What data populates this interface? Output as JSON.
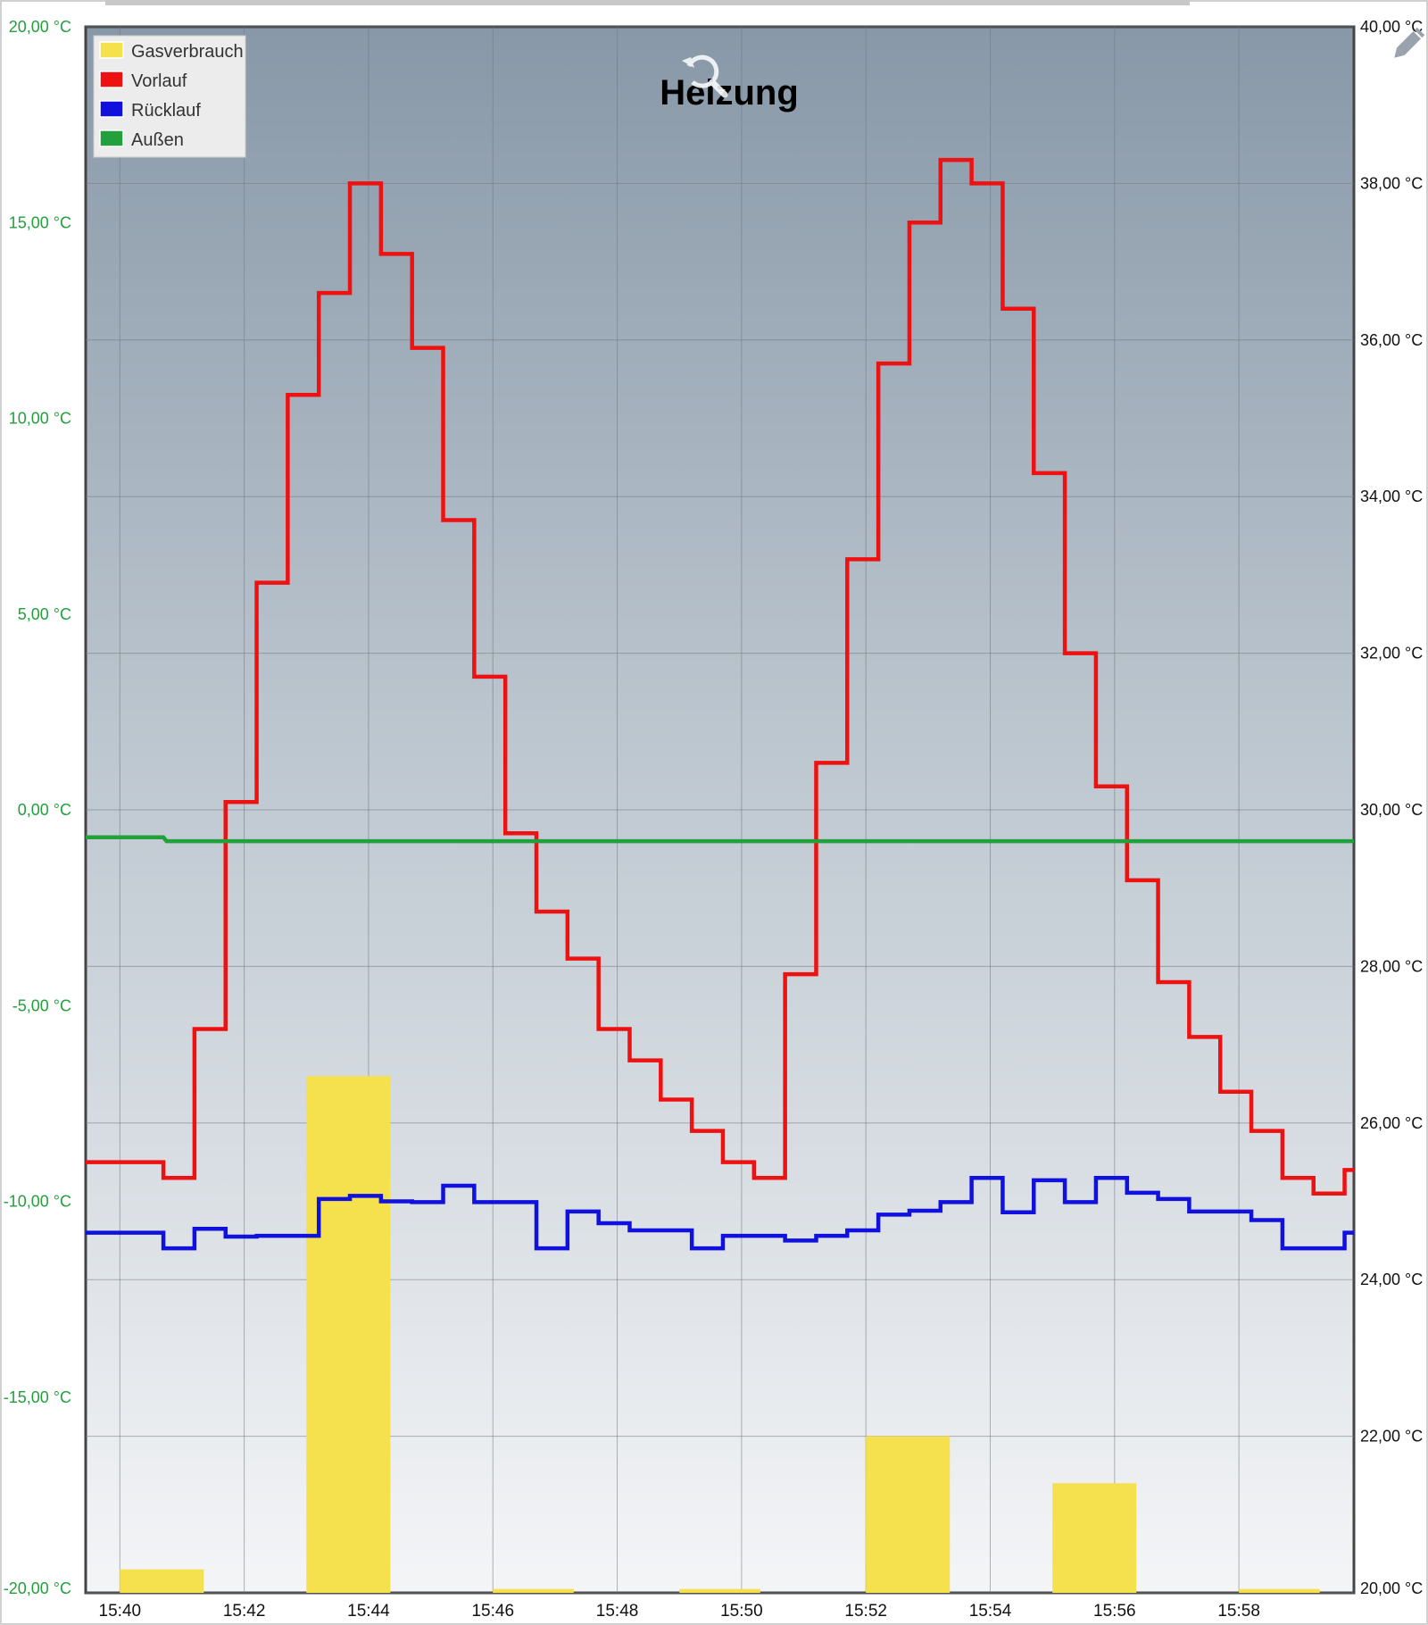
{
  "chart_data": {
    "type": "line",
    "title": "Heizung",
    "x_ticks": [
      "15:40",
      "15:42",
      "15:44",
      "15:46",
      "15:48",
      "15:50",
      "15:52",
      "15:54",
      "15:56",
      "15:58"
    ],
    "x_range_minutes": [
      -0.55,
      19.85
    ],
    "y_left": {
      "range": [
        -20,
        20
      ],
      "ticks": [
        "20,00 °C",
        "15,00 °C",
        "10,00 °C",
        "5,00 °C",
        "0,00 °C",
        "-5,00 °C",
        "-10,00 °C",
        "-15,00 °C",
        "-20,00 °C"
      ],
      "color": "#22a03c"
    },
    "y_right": {
      "range": [
        20,
        40
      ],
      "ticks": [
        "40,00 °C",
        "38,00 °C",
        "36,00 °C",
        "34,00 °C",
        "32,00 °C",
        "30,00 °C",
        "28,00 °C",
        "26,00 °C",
        "24,00 °C",
        "22,00 °C",
        "20,00 °C"
      ]
    },
    "grid": true,
    "legend_position": "top-left",
    "series": [
      {
        "name": "Gasverbrauch",
        "type": "bar",
        "axis": "right",
        "color": "#f5e04e",
        "bars": [
          {
            "x0": 0.0,
            "x1": 1.35,
            "value": 20.3
          },
          {
            "x0": 3.0,
            "x1": 4.35,
            "value": 26.6
          },
          {
            "x0": 6.0,
            "x1": 7.3,
            "value": 20.05
          },
          {
            "x0": 9.0,
            "x1": 10.3,
            "value": 20.05
          },
          {
            "x0": 12.0,
            "x1": 13.35,
            "value": 22.0
          },
          {
            "x0": 15.0,
            "x1": 16.35,
            "value": 21.4
          },
          {
            "x0": 18.0,
            "x1": 19.3,
            "value": 20.05
          }
        ]
      },
      {
        "name": "Vorlauf",
        "type": "step",
        "axis": "right",
        "color": "#ee1111",
        "x": [
          -0.55,
          0.7,
          1.2,
          1.7,
          2.2,
          2.7,
          3.2,
          3.7,
          4.2,
          4.7,
          5.2,
          5.7,
          6.2,
          6.7,
          7.2,
          7.7,
          8.2,
          8.7,
          9.2,
          9.7,
          10.2,
          10.7,
          11.2,
          11.7,
          12.2,
          12.7,
          13.2,
          13.7,
          14.2,
          14.7,
          15.2,
          15.7,
          16.2,
          16.7,
          17.2,
          17.7,
          18.2,
          18.7,
          19.2,
          19.7
        ],
        "values": [
          25.5,
          25.3,
          27.2,
          30.1,
          32.9,
          35.3,
          36.6,
          38.0,
          37.1,
          35.9,
          33.7,
          31.7,
          29.7,
          28.7,
          28.1,
          27.2,
          26.8,
          26.3,
          25.9,
          25.5,
          25.3,
          27.9,
          30.6,
          33.2,
          35.7,
          37.5,
          38.3,
          38.0,
          36.4,
          34.3,
          32.0,
          30.3,
          29.1,
          27.8,
          27.1,
          26.4,
          25.9,
          25.3,
          25.1,
          25.4
        ]
      },
      {
        "name": "Rücklauf",
        "type": "step",
        "axis": "right",
        "color": "#1111dd",
        "x": [
          -0.55,
          0.7,
          1.2,
          1.7,
          2.2,
          3.2,
          3.7,
          4.2,
          4.7,
          5.2,
          5.7,
          6.2,
          6.7,
          7.2,
          7.7,
          8.2,
          8.7,
          9.2,
          9.7,
          10.2,
          10.7,
          11.2,
          11.7,
          12.2,
          12.7,
          13.2,
          13.7,
          14.2,
          14.7,
          15.2,
          15.7,
          16.2,
          16.7,
          17.2,
          17.7,
          18.2,
          18.7,
          19.2,
          19.7
        ],
        "values": [
          24.6,
          24.4,
          24.65,
          24.55,
          24.56,
          25.03,
          25.07,
          25.0,
          24.99,
          25.2,
          24.99,
          24.99,
          24.4,
          24.87,
          24.72,
          24.63,
          24.63,
          24.4,
          24.56,
          24.56,
          24.5,
          24.56,
          24.63,
          24.83,
          24.88,
          24.99,
          25.3,
          24.86,
          25.27,
          24.99,
          25.3,
          25.11,
          25.03,
          24.87,
          24.87,
          24.76,
          24.4,
          24.4,
          24.6
        ]
      },
      {
        "name": "Außen",
        "type": "line",
        "axis": "left",
        "color": "#22a03c",
        "x": [
          -0.55,
          0.7,
          0.75,
          19.85
        ],
        "values": [
          -0.7,
          -0.7,
          -0.8,
          -0.8
        ]
      }
    ]
  }
}
